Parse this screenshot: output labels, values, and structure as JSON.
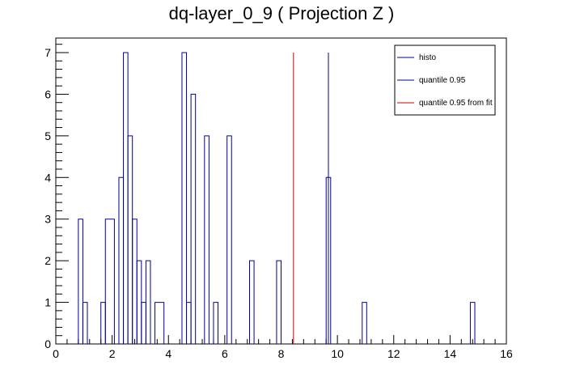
{
  "chart_data": {
    "type": "histogram",
    "title": "dq-layer_0_9 ( Projection Z )",
    "xlabel": "",
    "ylabel": "",
    "xlim": [
      0,
      16
    ],
    "ylim": [
      0,
      7.35
    ],
    "x_ticks": [
      0,
      2,
      4,
      6,
      8,
      10,
      12,
      14,
      16
    ],
    "y_ticks": [
      0,
      1,
      2,
      3,
      4,
      5,
      6,
      7
    ],
    "bin_width": 0.16,
    "bins": [
      {
        "x0": 0.8,
        "x1": 0.96,
        "y": 3
      },
      {
        "x0": 0.96,
        "x1": 1.12,
        "y": 1
      },
      {
        "x0": 1.6,
        "x1": 1.76,
        "y": 1
      },
      {
        "x0": 1.76,
        "x1": 2.08,
        "y": 3
      },
      {
        "x0": 2.24,
        "x1": 2.4,
        "y": 4
      },
      {
        "x0": 2.4,
        "x1": 2.56,
        "y": 7
      },
      {
        "x0": 2.56,
        "x1": 2.72,
        "y": 5
      },
      {
        "x0": 2.72,
        "x1": 2.88,
        "y": 3
      },
      {
        "x0": 2.88,
        "x1": 3.04,
        "y": 2
      },
      {
        "x0": 3.04,
        "x1": 3.2,
        "y": 1
      },
      {
        "x0": 3.2,
        "x1": 3.36,
        "y": 2
      },
      {
        "x0": 3.52,
        "x1": 3.84,
        "y": 1
      },
      {
        "x0": 4.48,
        "x1": 4.64,
        "y": 7
      },
      {
        "x0": 4.64,
        "x1": 4.8,
        "y": 1
      },
      {
        "x0": 4.8,
        "x1": 4.96,
        "y": 6
      },
      {
        "x0": 5.28,
        "x1": 5.44,
        "y": 5
      },
      {
        "x0": 5.6,
        "x1": 5.76,
        "y": 1
      },
      {
        "x0": 6.08,
        "x1": 6.24,
        "y": 5
      },
      {
        "x0": 6.88,
        "x1": 7.04,
        "y": 2
      },
      {
        "x0": 7.84,
        "x1": 8.0,
        "y": 2
      },
      {
        "x0": 9.6,
        "x1": 9.76,
        "y": 4
      },
      {
        "x0": 10.88,
        "x1": 11.04,
        "y": 1
      },
      {
        "x0": 14.72,
        "x1": 14.88,
        "y": 1
      }
    ],
    "quantile_line": {
      "x": 9.68,
      "y": 7,
      "color": "#000099"
    },
    "quantile_fit_line": {
      "x": 8.44,
      "y": 7,
      "color": "#cc0000"
    },
    "histo_color": "#000099",
    "legend": {
      "position": "top-right",
      "entries": [
        {
          "label": "histo",
          "color": "#000099"
        },
        {
          "label": "quantile 0.95",
          "color": "#000099"
        },
        {
          "label": "quantile 0.95 from fit",
          "color": "#cc0000"
        }
      ]
    }
  }
}
